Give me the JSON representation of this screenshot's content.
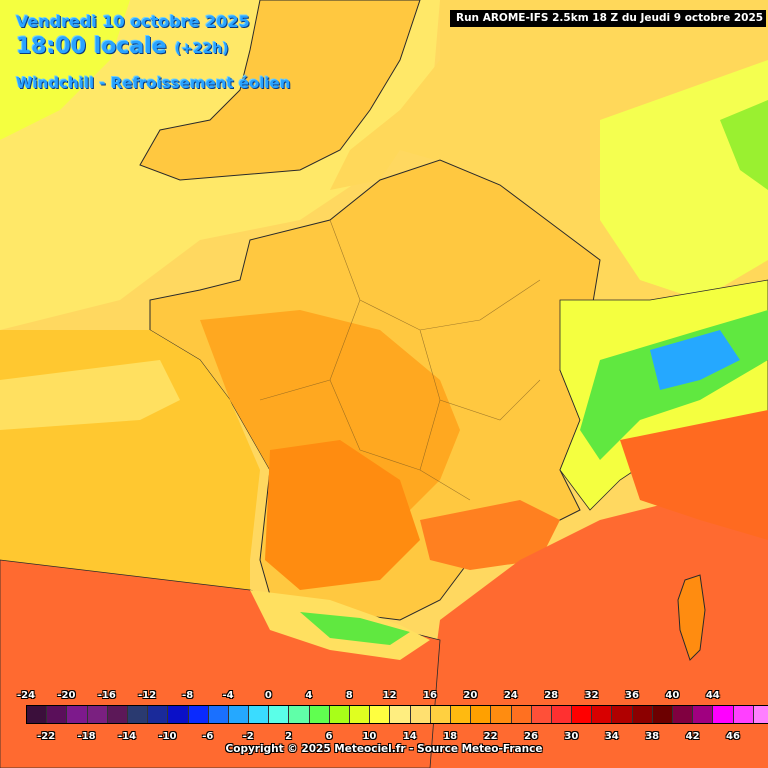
{
  "header": {
    "date": "Vendredi 10 octobre 2025",
    "time": "18:00 locale",
    "offset": "(+22h)",
    "parameter": "Windchill - Refroissement éolien"
  },
  "run_info": "Run AROME-IFS 2.5km 18 Z du Jeudi 9 octobre 2025",
  "legend": {
    "top_ticks": [
      "-24",
      "-20",
      "-16",
      "-12",
      "-8",
      "-4",
      "0",
      "4",
      "8",
      "12",
      "16",
      "20",
      "24",
      "28",
      "32",
      "36",
      "40",
      "44"
    ],
    "bottom_ticks": [
      "-22",
      "-18",
      "-14",
      "-10",
      "-6",
      "-2",
      "2",
      "6",
      "10",
      "14",
      "18",
      "22",
      "26",
      "30",
      "34",
      "38",
      "42",
      "46"
    ],
    "colors": [
      "#3b0f3b",
      "#5a0f5a",
      "#7d1a8c",
      "#7a2080",
      "#5c1858",
      "#2a3a70",
      "#1a2a9a",
      "#0a10c8",
      "#0a2aff",
      "#1a70ff",
      "#25a8ff",
      "#3adcff",
      "#5affe8",
      "#60ffa8",
      "#60ff50",
      "#a8ff18",
      "#e0ff20",
      "#ffff40",
      "#ffee80",
      "#ffe070",
      "#ffd040",
      "#ffba10",
      "#ffa000",
      "#ff8c10",
      "#ff7020",
      "#ff5038",
      "#ff3030",
      "#ff0000",
      "#d80000",
      "#b00000",
      "#8c0000",
      "#6c0000",
      "#800040",
      "#a00080",
      "#ff00ff",
      "#ff40ff",
      "#ff80ff"
    ]
  },
  "copyright": "Copyright © 2025 Meteociel.fr - Source Meteo-France",
  "map": {
    "colors": {
      "sea_cool": "#ffe060",
      "yellow_light": "#ffef7a",
      "yellow_lime": "#f4ff40",
      "orange_light": "#ffc840",
      "orange": "#ffa820",
      "orange_dark": "#ff8c10",
      "red_orange": "#ff6a20",
      "red": "#ff5038",
      "mountain_green": "#60ff50",
      "mountain_cyan": "#25a8ff",
      "border": "#2a2a2a"
    }
  }
}
